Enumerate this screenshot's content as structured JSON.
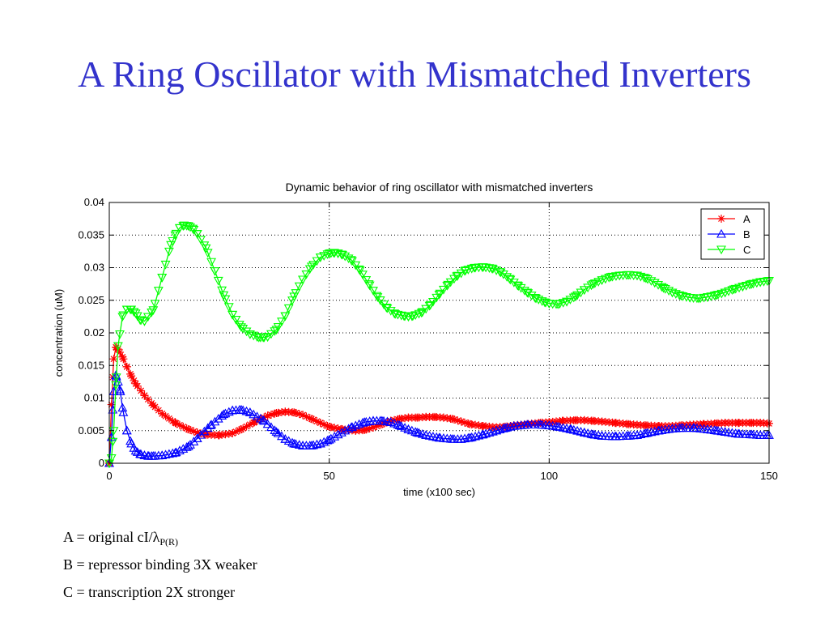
{
  "slide": {
    "title": "A Ring Oscillator with Mismatched Inverters"
  },
  "notes": {
    "line1_prefix": "A = original cI/",
    "line1_lambda": "λ",
    "line1_sub": "P(R)",
    "line2": "B = repressor binding 3X weaker",
    "line3": "C = transcription 2X stronger"
  },
  "chart_data": {
    "type": "line",
    "title": "Dynamic behavior of ring oscillator with mismatched inverters",
    "xlabel": "time (x100 sec)",
    "ylabel": "concentration (uM)",
    "xlim": [
      0,
      150
    ],
    "ylim": [
      0,
      0.04
    ],
    "xticks": [
      0,
      50,
      100,
      150
    ],
    "xtick_labels": [
      "0",
      "50",
      "100",
      "150"
    ],
    "yticks": [
      0,
      0.005,
      0.01,
      0.015,
      0.02,
      0.025,
      0.03,
      0.035,
      0.04
    ],
    "ytick_labels": [
      "0",
      "0.005",
      "0.01",
      "0.015",
      "0.02",
      "0.025",
      "0.03",
      "0.035",
      "0.04"
    ],
    "grid": true,
    "legend_position": "top-right",
    "series": [
      {
        "name": "A",
        "color": "#ff0000",
        "marker": "asterisk",
        "x": [
          0,
          0.5,
          1,
          1.5,
          2,
          3,
          4,
          5,
          6,
          8,
          10,
          12,
          15,
          18,
          20,
          22,
          25,
          28,
          30,
          33,
          36,
          38,
          40,
          42,
          44,
          46,
          48,
          50,
          53,
          56,
          58,
          60,
          62,
          64,
          66,
          68,
          70,
          72,
          74,
          76,
          78,
          80,
          82,
          85,
          88,
          90,
          92,
          95,
          98,
          100,
          103,
          106,
          108,
          110,
          112,
          115,
          118,
          120,
          122,
          125,
          128,
          130,
          132,
          135,
          138,
          140,
          143,
          146,
          148,
          150
        ],
        "y": [
          0,
          0.009,
          0.016,
          0.0178,
          0.0175,
          0.0163,
          0.0148,
          0.0134,
          0.0122,
          0.0104,
          0.0089,
          0.0076,
          0.0062,
          0.0052,
          0.0047,
          0.0044,
          0.0043,
          0.0046,
          0.0052,
          0.0063,
          0.0073,
          0.0077,
          0.0079,
          0.0078,
          0.0074,
          0.0068,
          0.0062,
          0.0056,
          0.0052,
          0.005,
          0.0051,
          0.0055,
          0.006,
          0.0065,
          0.0068,
          0.007,
          0.007,
          0.0071,
          0.0071,
          0.007,
          0.0068,
          0.0064,
          0.006,
          0.0057,
          0.0055,
          0.0056,
          0.0058,
          0.006,
          0.0062,
          0.0063,
          0.0065,
          0.0066,
          0.0066,
          0.0065,
          0.0064,
          0.0062,
          0.006,
          0.0059,
          0.0058,
          0.0057,
          0.0057,
          0.0058,
          0.0059,
          0.006,
          0.0061,
          0.0062,
          0.0062,
          0.0062,
          0.0062,
          0.0061
        ]
      },
      {
        "name": "B",
        "color": "#0000ff",
        "marker": "triangle-up",
        "x": [
          0,
          0.5,
          1,
          1.5,
          2,
          2.5,
          3,
          4,
          5,
          6,
          7,
          8,
          9,
          10,
          12,
          15,
          18,
          20,
          23,
          26,
          28,
          30,
          32,
          35,
          38,
          40,
          42,
          44,
          46,
          48,
          50,
          52,
          55,
          58,
          60,
          62,
          64,
          66,
          68,
          70,
          72,
          75,
          78,
          80,
          82,
          85,
          88,
          90,
          92,
          95,
          98,
          100,
          102,
          105,
          108,
          110,
          112,
          115,
          118,
          120,
          122,
          125,
          128,
          130,
          133,
          136,
          138,
          140,
          143,
          146,
          148,
          150
        ],
        "y": [
          0,
          0.004,
          0.011,
          0.0135,
          0.0125,
          0.011,
          0.0085,
          0.005,
          0.003,
          0.0019,
          0.0014,
          0.0012,
          0.0011,
          0.0011,
          0.0012,
          0.0016,
          0.0026,
          0.0038,
          0.0058,
          0.0075,
          0.0081,
          0.0082,
          0.0078,
          0.0066,
          0.0048,
          0.0037,
          0.003,
          0.0027,
          0.0027,
          0.003,
          0.0036,
          0.0044,
          0.0055,
          0.0063,
          0.0065,
          0.0065,
          0.0063,
          0.0058,
          0.0052,
          0.0047,
          0.0043,
          0.0039,
          0.0037,
          0.0037,
          0.0039,
          0.0044,
          0.005,
          0.0054,
          0.0057,
          0.0059,
          0.0059,
          0.0058,
          0.0056,
          0.0052,
          0.0047,
          0.0044,
          0.0042,
          0.0041,
          0.0042,
          0.0043,
          0.0046,
          0.005,
          0.0053,
          0.0054,
          0.0054,
          0.0052,
          0.005,
          0.0048,
          0.0045,
          0.0044,
          0.0043,
          0.0043
        ]
      },
      {
        "name": "C",
        "color": "#00ff00",
        "marker": "triangle-down",
        "x": [
          0,
          0.5,
          1,
          1.5,
          2,
          3,
          4,
          5,
          6,
          7,
          8,
          10,
          12,
          14,
          15,
          16,
          17,
          18,
          19,
          20,
          22,
          24,
          26,
          28,
          30,
          32,
          34,
          35,
          36,
          38,
          40,
          42,
          44,
          46,
          48,
          50,
          51,
          52,
          53,
          55,
          57,
          59,
          61,
          63,
          65,
          67,
          68,
          69,
          71,
          73,
          75,
          77,
          79,
          81,
          83,
          85,
          87,
          89,
          91,
          93,
          95,
          97,
          99,
          100,
          102,
          104,
          106,
          108,
          110,
          112,
          114,
          116,
          118,
          120,
          122,
          124,
          126,
          128,
          130,
          132,
          134,
          136,
          138,
          140,
          142,
          144,
          146,
          148,
          150
        ],
        "y": [
          0,
          0.0008,
          0.005,
          0.012,
          0.018,
          0.0225,
          0.0236,
          0.0236,
          0.023,
          0.022,
          0.0218,
          0.0235,
          0.0285,
          0.0335,
          0.035,
          0.0361,
          0.0365,
          0.0364,
          0.036,
          0.0352,
          0.033,
          0.0295,
          0.0258,
          0.0228,
          0.0209,
          0.0198,
          0.0193,
          0.0193,
          0.0194,
          0.0205,
          0.0226,
          0.0256,
          0.0282,
          0.0302,
          0.0316,
          0.0322,
          0.0323,
          0.0322,
          0.032,
          0.0312,
          0.0296,
          0.0275,
          0.0255,
          0.0239,
          0.0229,
          0.0226,
          0.0225,
          0.0226,
          0.0231,
          0.0243,
          0.0259,
          0.0274,
          0.0287,
          0.0296,
          0.03,
          0.0301,
          0.0299,
          0.0293,
          0.0283,
          0.0272,
          0.0262,
          0.0253,
          0.0247,
          0.0245,
          0.0244,
          0.0248,
          0.0256,
          0.0266,
          0.0275,
          0.0281,
          0.0286,
          0.0288,
          0.0289,
          0.0288,
          0.0284,
          0.0277,
          0.0269,
          0.0262,
          0.0257,
          0.0254,
          0.0253,
          0.0255,
          0.0258,
          0.0262,
          0.0267,
          0.0271,
          0.0275,
          0.0278,
          0.028
        ]
      }
    ]
  }
}
